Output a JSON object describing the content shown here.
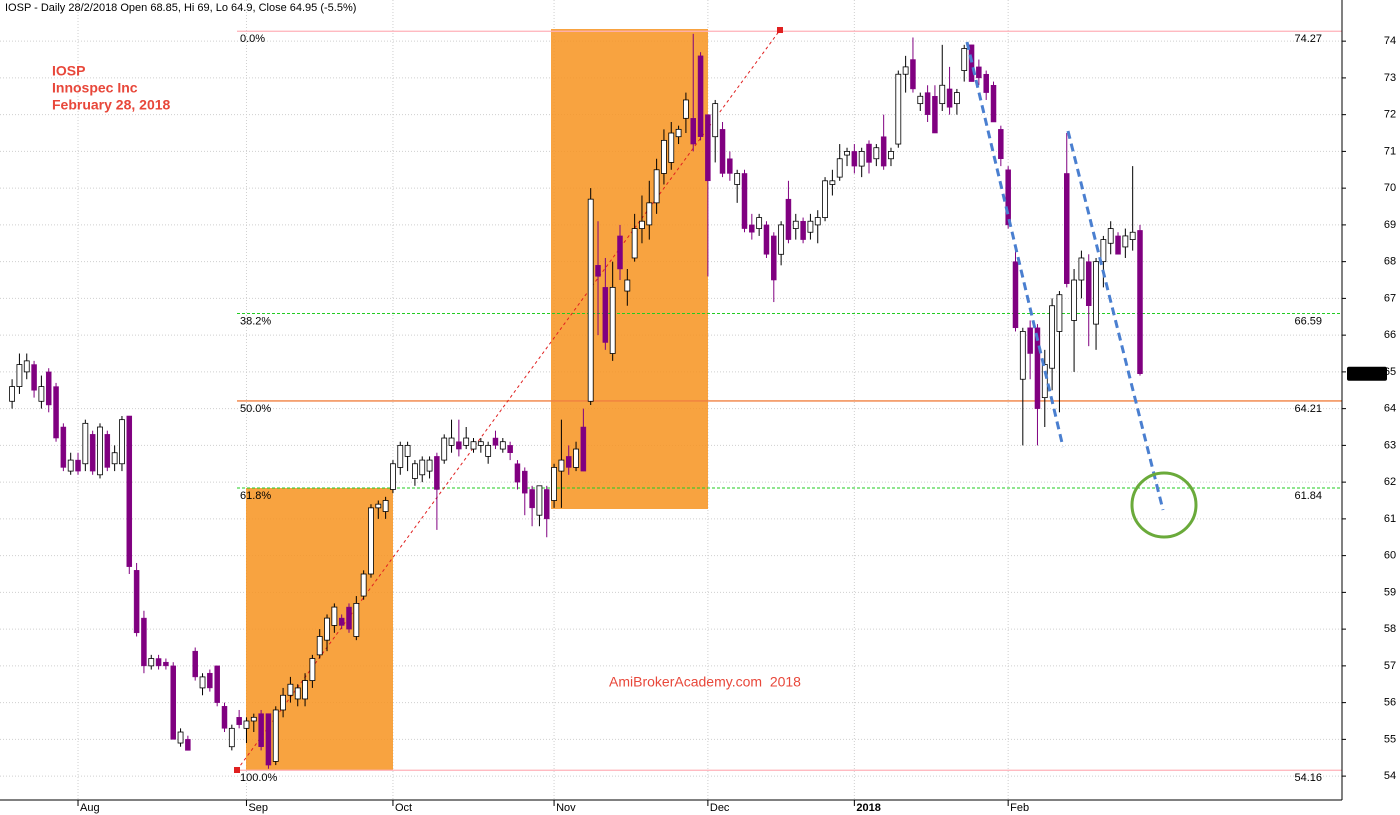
{
  "chart_data": {
    "type": "candlestick",
    "title": "IOSP - Daily 28/2/2018 Open 68.85, Hi 69, Lo 64.9, Close 64.95 (-5.5%)",
    "annotations": [
      "IOSP",
      "Innospec Inc",
      "February 28, 2018"
    ],
    "watermark": "AmiBrokerAcademy.com  2018",
    "up_color": "#ffffff",
    "down_color": "#800080",
    "ylim": [
      53.35,
      75.12
    ],
    "yticks": [
      54,
      55,
      56,
      57,
      58,
      59,
      60,
      61,
      62,
      63,
      64,
      65,
      66,
      67,
      68,
      69,
      70,
      71,
      72,
      73,
      74
    ],
    "grid": true,
    "categories": [
      null,
      null,
      null,
      null,
      null,
      null,
      null,
      null,
      null,
      "Aug",
      null,
      null,
      null,
      null,
      null,
      null,
      null,
      null,
      null,
      null,
      null,
      null,
      null,
      null,
      null,
      null,
      null,
      null,
      null,
      null,
      null,
      null,
      "Sep",
      null,
      null,
      null,
      null,
      null,
      null,
      null,
      null,
      null,
      null,
      null,
      null,
      null,
      null,
      null,
      null,
      null,
      null,
      null,
      "Oct",
      null,
      null,
      null,
      null,
      null,
      null,
      null,
      null,
      null,
      null,
      null,
      null,
      null,
      null,
      null,
      null,
      null,
      null,
      null,
      null,
      null,
      "Nov",
      null,
      null,
      null,
      null,
      null,
      null,
      null,
      null,
      null,
      null,
      null,
      null,
      null,
      null,
      null,
      null,
      null,
      null,
      null,
      null,
      "Dec",
      null,
      null,
      null,
      null,
      null,
      null,
      null,
      null,
      null,
      null,
      null,
      null,
      null,
      null,
      null,
      null,
      null,
      null,
      null,
      "2018",
      null,
      null,
      null,
      null,
      null,
      null,
      null,
      null,
      null,
      null,
      null,
      null,
      null,
      null,
      null,
      null,
      null,
      null,
      null,
      null,
      "Feb",
      null,
      null,
      null,
      null,
      null,
      null,
      null,
      null,
      null,
      null,
      null,
      null,
      null,
      null,
      null,
      null,
      null,
      null
    ],
    "open": [
      64.2,
      64.6,
      65.0,
      65.2,
      64.2,
      65.0,
      64.6,
      63.5,
      62.3,
      62.6,
      62.5,
      63.3,
      62.2,
      63.3,
      62.5,
      62.5,
      63.8,
      59.6,
      58.3,
      57.0,
      57.2,
      57.1,
      57.0,
      54.9,
      55.0,
      57.4,
      56.4,
      56.8,
      57.0,
      55.9,
      54.8,
      55.6,
      55.3,
      55.5,
      55.7,
      55.7,
      54.4,
      55.8,
      56.2,
      56.1,
      56.1,
      56.6,
      57.3,
      57.7,
      58.1,
      58.3,
      58.6,
      57.8,
      58.9,
      59.5,
      61.3,
      61.2,
      61.8,
      62.4,
      62.7,
      62.1,
      62.2,
      62.3,
      62.7,
      62.6,
      63.0,
      63.1,
      63.0,
      62.9,
      63.0,
      62.7,
      63.2,
      62.9,
      63.0,
      62.5,
      62.3,
      61.8,
      61.1,
      61.8,
      61.5,
      62.3,
      62.7,
      62.4,
      63.5,
      64.2,
      67.9,
      67.3,
      65.5,
      68.7,
      67.2,
      68.1,
      68.9,
      69.0,
      69.6,
      70.4,
      70.7,
      71.4,
      71.9,
      71.9,
      73.6,
      72.0,
      71.4,
      71.6,
      70.8,
      70.1,
      70.4,
      69.0,
      68.9,
      69.0,
      68.7,
      68.2,
      69.7,
      68.9,
      69.1,
      68.8,
      69.0,
      69.2,
      70.1,
      70.3,
      70.9,
      71.0,
      70.6,
      71.2,
      70.8,
      71.4,
      70.8,
      71.2,
      73.1,
      73.5,
      72.3,
      72.6,
      72.5,
      72.3,
      72.7,
      72.3,
      73.2,
      73.9,
      73.3,
      73.1,
      72.8,
      71.6,
      70.5,
      68.0,
      64.8,
      66.2,
      66.2,
      64.3,
      65.1,
      66.1,
      70.4,
      66.4,
      67.5,
      68.0,
      66.3,
      68.0,
      68.5,
      68.7,
      68.4,
      68.6,
      68.85
    ],
    "high": [
      64.8,
      65.5,
      65.5,
      65.3,
      64.9,
      65.1,
      64.7,
      63.6,
      62.8,
      62.8,
      63.7,
      63.4,
      63.6,
      63.4,
      63.0,
      63.8,
      63.8,
      59.8,
      58.5,
      57.3,
      57.3,
      57.2,
      57.1,
      55.3,
      55.1,
      57.5,
      56.8,
      56.9,
      57.0,
      56.0,
      55.4,
      55.8,
      55.6,
      55.7,
      55.8,
      55.7,
      55.9,
      56.4,
      56.7,
      56.5,
      56.8,
      57.3,
      58.0,
      58.4,
      58.7,
      58.4,
      58.7,
      58.9,
      59.6,
      61.4,
      61.5,
      61.6,
      62.6,
      63.1,
      63.1,
      62.6,
      62.7,
      62.7,
      62.8,
      63.3,
      63.7,
      63.7,
      63.5,
      63.2,
      63.2,
      63.1,
      63.4,
      63.2,
      63.1,
      62.6,
      62.4,
      61.9,
      61.9,
      61.9,
      62.5,
      63.7,
      63.0,
      63.1,
      64.0,
      70.0,
      69.1,
      68.1,
      68.0,
      69.0,
      67.8,
      69.3,
      69.8,
      70.2,
      70.8,
      71.6,
      71.8,
      71.7,
      72.6,
      74.2,
      73.7,
      72.0,
      72.4,
      71.8,
      71.0,
      70.5,
      70.5,
      69.3,
      69.3,
      69.1,
      68.8,
      69.1,
      70.2,
      69.3,
      69.2,
      69.3,
      69.4,
      70.3,
      70.5,
      71.2,
      71.1,
      71.2,
      71.1,
      71.3,
      71.2,
      72.0,
      71.1,
      73.2,
      73.6,
      74.1,
      72.6,
      72.8,
      72.8,
      73.9,
      73.3,
      72.7,
      73.9,
      73.9,
      73.5,
      73.2,
      72.9,
      71.7,
      70.6,
      68.3,
      66.2,
      66.4,
      66.3,
      65.6,
      67.0,
      67.2,
      71.5,
      67.8,
      68.3,
      68.2,
      68.1,
      68.7,
      69.1,
      68.8,
      68.9,
      70.6,
      69.0
    ],
    "low": [
      64.0,
      64.4,
      64.8,
      64.3,
      64.0,
      63.9,
      63.1,
      62.3,
      62.2,
      62.2,
      62.3,
      62.2,
      62.1,
      62.3,
      62.3,
      62.3,
      59.5,
      57.8,
      56.8,
      56.9,
      56.9,
      56.9,
      55.0,
      54.8,
      54.7,
      56.6,
      56.2,
      56.3,
      55.9,
      55.2,
      54.7,
      55.3,
      54.9,
      55.2,
      54.7,
      54.2,
      54.3,
      55.6,
      56.0,
      55.9,
      55.9,
      56.4,
      57.2,
      57.4,
      57.9,
      58.0,
      57.9,
      57.7,
      58.8,
      59.4,
      61.0,
      61.0,
      61.7,
      62.2,
      62.3,
      61.9,
      62.0,
      62.1,
      60.7,
      62.5,
      62.8,
      62.7,
      62.9,
      62.8,
      62.8,
      62.5,
      62.9,
      62.8,
      62.6,
      61.8,
      61.1,
      60.8,
      60.8,
      60.5,
      61.3,
      61.3,
      62.2,
      62.3,
      62.3,
      64.1,
      66.0,
      65.6,
      65.3,
      67.5,
      66.8,
      68.0,
      68.5,
      68.6,
      69.3,
      70.1,
      70.5,
      71.2,
      71.5,
      71.0,
      71.3,
      67.6,
      70.7,
      70.3,
      70.2,
      69.6,
      68.8,
      68.6,
      68.7,
      68.1,
      66.9,
      67.9,
      68.5,
      68.6,
      68.5,
      68.6,
      68.5,
      69.1,
      69.8,
      70.2,
      70.6,
      70.4,
      70.3,
      70.4,
      70.6,
      70.5,
      70.6,
      71.1,
      72.6,
      72.6,
      72.1,
      71.8,
      71.5,
      72.1,
      72.0,
      72.0,
      72.9,
      72.9,
      72.8,
      72.4,
      71.8,
      70.6,
      68.9,
      66.1,
      63.0,
      64.8,
      63.0,
      63.5,
      64.5,
      63.9,
      67.3,
      65.0,
      67.0,
      65.7,
      65.6,
      67.3,
      68.2,
      68.2,
      68.1,
      68.3,
      64.9
    ],
    "close": [
      64.6,
      65.2,
      65.3,
      64.5,
      64.6,
      64.1,
      63.2,
      62.4,
      62.6,
      62.3,
      63.6,
      62.3,
      63.5,
      62.4,
      62.8,
      63.7,
      59.7,
      57.9,
      57.0,
      57.2,
      57.0,
      57.0,
      55.0,
      55.2,
      54.7,
      56.7,
      56.7,
      56.4,
      56.0,
      55.3,
      55.3,
      55.4,
      55.5,
      55.6,
      54.8,
      54.3,
      55.8,
      56.2,
      56.5,
      56.4,
      56.6,
      57.2,
      57.8,
      58.3,
      58.6,
      58.1,
      58.0,
      58.7,
      59.5,
      61.3,
      61.4,
      61.5,
      62.5,
      63.0,
      63.0,
      62.5,
      62.6,
      62.6,
      61.8,
      63.2,
      63.2,
      62.9,
      63.2,
      63.1,
      63.1,
      63.0,
      63.0,
      63.1,
      62.8,
      62.0,
      61.7,
      61.3,
      61.9,
      61.0,
      62.4,
      62.6,
      62.4,
      62.9,
      62.3,
      69.7,
      67.6,
      65.8,
      67.3,
      67.8,
      67.5,
      68.9,
      69.1,
      69.6,
      70.5,
      71.3,
      71.5,
      71.6,
      72.4,
      71.2,
      71.4,
      70.2,
      72.3,
      70.4,
      70.4,
      70.4,
      68.9,
      68.8,
      69.2,
      68.2,
      67.5,
      69.0,
      68.6,
      69.1,
      68.6,
      69.1,
      69.2,
      70.2,
      70.2,
      70.8,
      71.0,
      70.6,
      71.0,
      70.7,
      71.1,
      70.6,
      71.0,
      73.1,
      73.3,
      72.7,
      72.5,
      72.0,
      71.5,
      72.8,
      72.2,
      72.6,
      73.8,
      72.9,
      73.0,
      72.6,
      71.8,
      70.8,
      69.0,
      66.2,
      66.1,
      65.5,
      64.0,
      65.2,
      66.8,
      67.1,
      67.4,
      67.5,
      68.1,
      66.8,
      68.0,
      68.6,
      68.9,
      68.2,
      68.7,
      68.8,
      64.95
    ],
    "fib_levels": [
      {
        "label": "0.0%",
        "value": 74.27,
        "color": "#ffb0b8",
        "dashed": false
      },
      {
        "label": "38.2%",
        "value": 66.59,
        "color": "#22cc22",
        "dashed": true
      },
      {
        "label": "50.0%",
        "value": 64.21,
        "color": "#f08040",
        "dashed": false
      },
      {
        "label": "61.8%",
        "value": 61.84,
        "color": "#22cc22",
        "dashed": true
      },
      {
        "label": "100.0%",
        "value": 54.16,
        "color": "#ffb0b8",
        "dashed": false
      }
    ]
  }
}
